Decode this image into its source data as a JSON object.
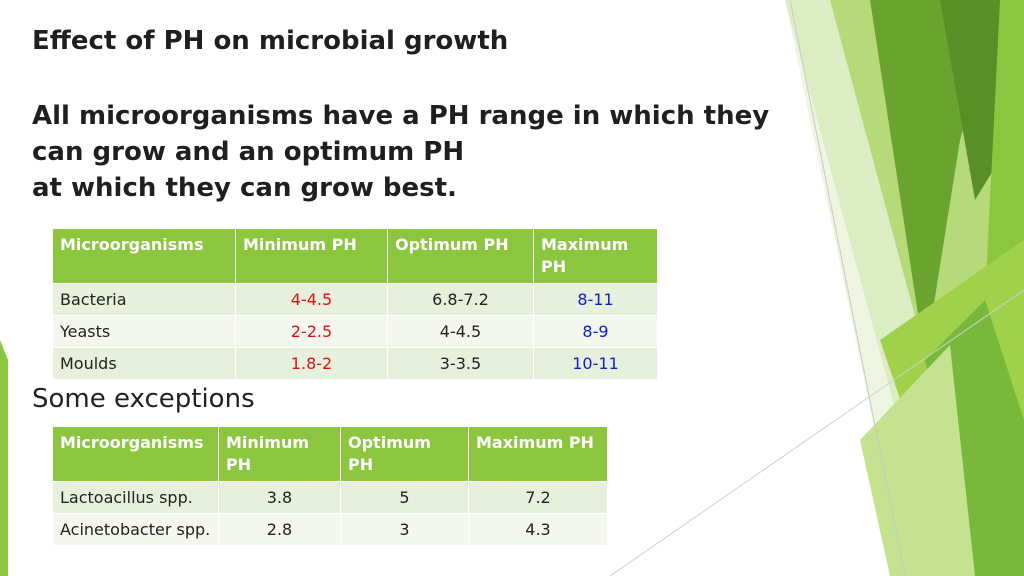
{
  "slide": {
    "title": "Effect of PH on microbial growth",
    "body_lines": [
      "All microorganisms have a PH range in which they",
      "can grow and an optimum PH",
      "at which they can grow best."
    ],
    "subheading": "Some exceptions"
  },
  "table_main": {
    "headers": [
      "Microorganisms",
      "Minimum PH",
      "Optimum  PH",
      "Maximum PH"
    ],
    "rows": [
      [
        "Bacteria",
        "4-4.5",
        "6.8-7.2",
        "8-11"
      ],
      [
        "Yeasts",
        "2-2.5",
        "4-4.5",
        "8-9"
      ],
      [
        "Moulds",
        "1.8-2",
        "3-3.5",
        "10-11"
      ]
    ]
  },
  "table_exceptions": {
    "headers": [
      "Microorganisms",
      "Minimum PH",
      "Optimum PH",
      "Maximum PH"
    ],
    "rows": [
      [
        "Lactoacillus  spp.",
        "3.8",
        "5",
        "7.2"
      ],
      [
        "Acinetobacter spp.",
        "2.8",
        "3",
        "4.3"
      ]
    ]
  },
  "colors": {
    "header_green": "#8cc63f",
    "min_red": "#e01010",
    "max_blue": "#1020c8"
  }
}
